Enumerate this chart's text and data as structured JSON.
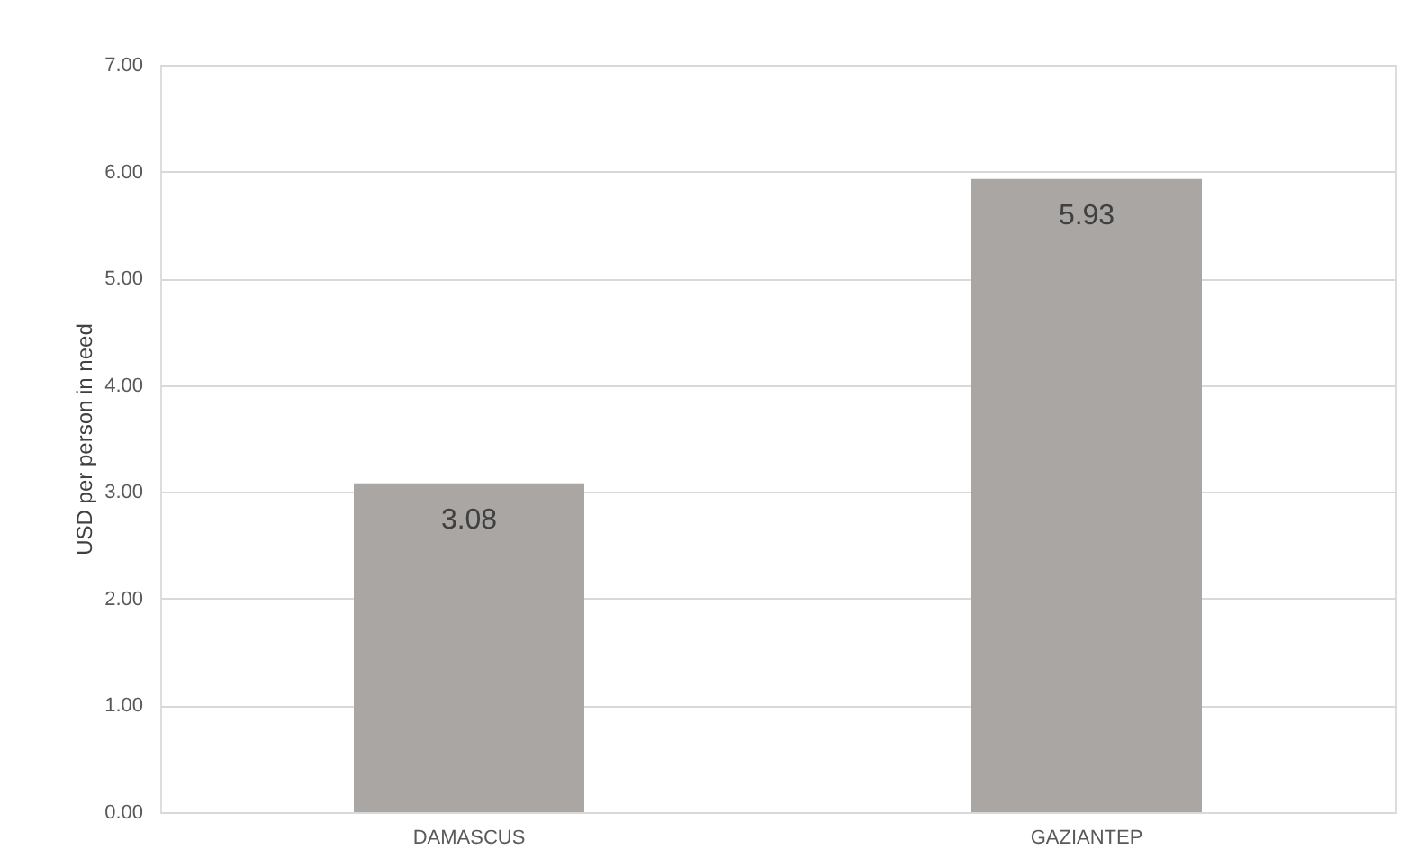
{
  "chart_data": {
    "type": "bar",
    "ylabel": "USD per person in need",
    "categories": [
      "DAMASCUS",
      "GAZIANTEP"
    ],
    "values": [
      3.08,
      5.93
    ],
    "color": "#a9a6a4",
    "ylim": [
      0,
      7
    ],
    "yticks": [
      {
        "value": 0,
        "label": "0.00"
      },
      {
        "value": 1,
        "label": "1.00"
      },
      {
        "value": 2,
        "label": "2.00"
      },
      {
        "value": 3,
        "label": "3.00"
      },
      {
        "value": 4,
        "label": "4.00"
      },
      {
        "value": 5,
        "label": "5.00"
      },
      {
        "value": 6,
        "label": "6.00"
      },
      {
        "value": 7,
        "label": "7.00"
      }
    ],
    "grid": "y",
    "data_labels": true
  }
}
